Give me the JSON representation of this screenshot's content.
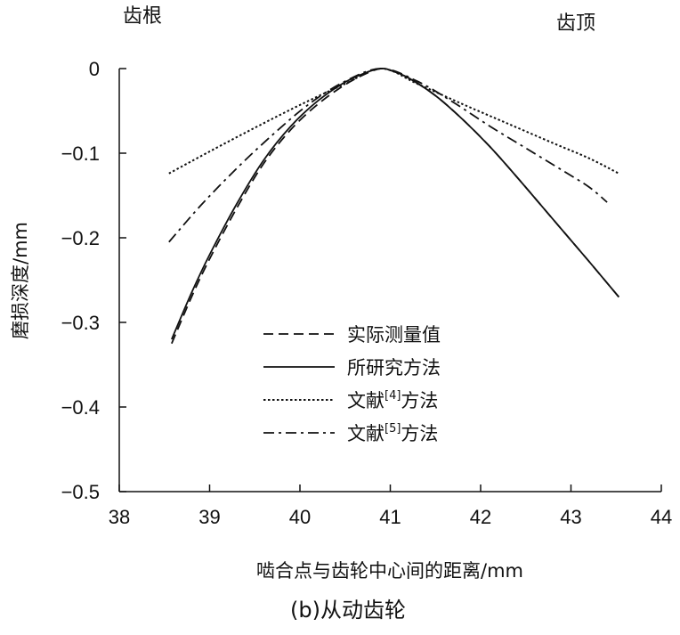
{
  "chart_data": {
    "type": "line",
    "caption": "(b)从动齿轮",
    "xlabel": "啮合点与齿轮中心间的距离/mm",
    "ylabel": "磨损深度/mm",
    "annotations": {
      "left": "齿根",
      "right": "齿顶"
    },
    "xlim": [
      38,
      44
    ],
    "ylim": [
      -0.5,
      0
    ],
    "x_ticks": [
      38,
      39,
      40,
      41,
      42,
      43,
      44
    ],
    "y_ticks": [
      0,
      -0.1,
      -0.2,
      -0.3,
      -0.4,
      -0.5
    ],
    "x_tick_labels": [
      "38",
      "39",
      "40",
      "41",
      "42",
      "43",
      "44"
    ],
    "y_tick_labels": [
      "0",
      "−0.1",
      "−0.2",
      "−0.3",
      "−0.4",
      "−0.5"
    ],
    "grid": false,
    "legend_position": "center",
    "series": [
      {
        "name": "实际测量值",
        "style": "dashed",
        "x": [
          38.58,
          38.8,
          39.0,
          39.3,
          39.6,
          39.9,
          40.2,
          40.5,
          40.75,
          40.9,
          41.0,
          41.2,
          41.5,
          41.8,
          42.1,
          42.4,
          42.8,
          43.2,
          43.53
        ],
        "y": [
          -0.325,
          -0.27,
          -0.225,
          -0.165,
          -0.112,
          -0.072,
          -0.042,
          -0.019,
          -0.005,
          0.0,
          -0.002,
          -0.011,
          -0.032,
          -0.06,
          -0.092,
          -0.128,
          -0.178,
          -0.228,
          -0.27
        ]
      },
      {
        "name": "所研究方法",
        "style": "solid",
        "x": [
          38.58,
          38.8,
          39.0,
          39.3,
          39.6,
          39.9,
          40.2,
          40.5,
          40.75,
          40.9,
          41.0,
          41.2,
          41.5,
          41.8,
          42.1,
          42.4,
          42.8,
          43.2,
          43.53
        ],
        "y": [
          -0.32,
          -0.265,
          -0.22,
          -0.16,
          -0.108,
          -0.068,
          -0.038,
          -0.016,
          -0.004,
          0.0,
          -0.002,
          -0.011,
          -0.032,
          -0.06,
          -0.092,
          -0.128,
          -0.178,
          -0.228,
          -0.27
        ]
      },
      {
        "name": "文献[4]方法",
        "style": "dotted",
        "x": [
          38.55,
          39.0,
          39.5,
          40.0,
          40.5,
          40.9,
          41.3,
          41.8,
          42.3,
          42.8,
          43.2,
          43.53
        ],
        "y": [
          -0.124,
          -0.098,
          -0.07,
          -0.043,
          -0.018,
          0.0,
          -0.018,
          -0.042,
          -0.065,
          -0.088,
          -0.106,
          -0.124
        ]
      },
      {
        "name": "文献[5]方法",
        "style": "dashdot",
        "x": [
          38.55,
          38.9,
          39.3,
          39.7,
          40.1,
          40.5,
          40.9,
          41.3,
          41.7,
          42.1,
          42.5,
          42.9,
          43.2,
          43.4
        ],
        "y": [
          -0.205,
          -0.162,
          -0.118,
          -0.078,
          -0.042,
          -0.015,
          0.0,
          -0.015,
          -0.04,
          -0.068,
          -0.094,
          -0.12,
          -0.14,
          -0.158
        ]
      }
    ]
  }
}
